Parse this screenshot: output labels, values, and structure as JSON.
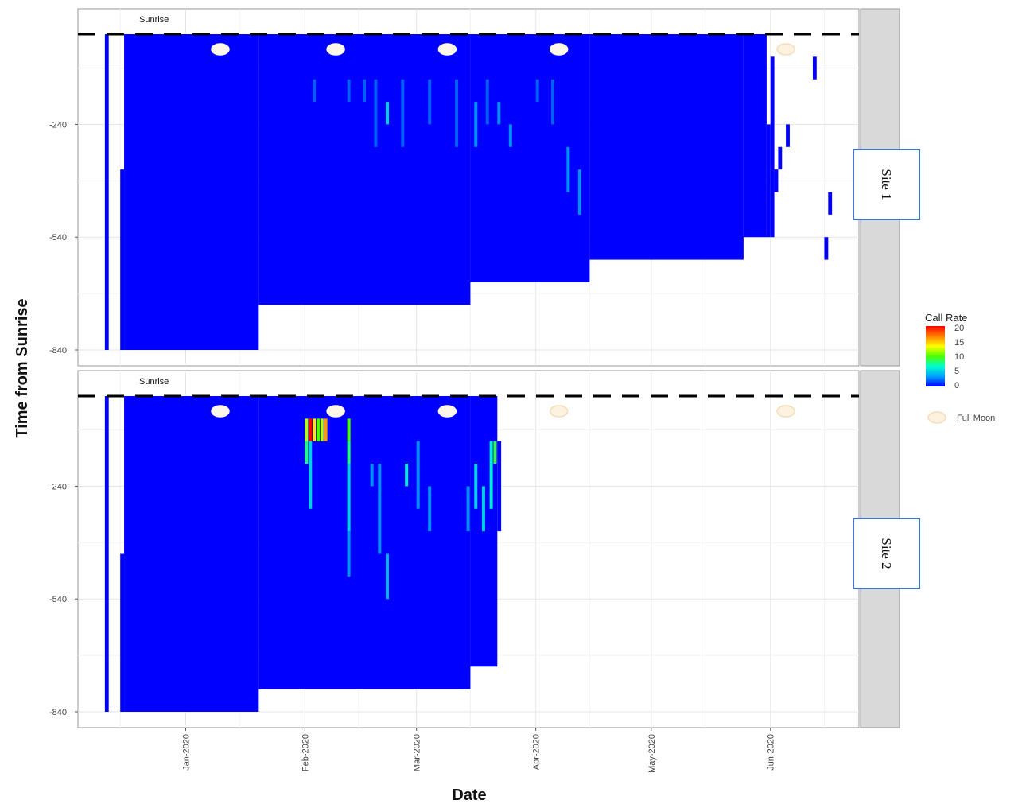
{
  "chart_data": {
    "type": "heatmap",
    "ylabel": "Time from Sunrise",
    "xlabel": "Date",
    "x_ticks": [
      "Jan-2020",
      "Feb-2020",
      "Mar-2020",
      "Apr-2020",
      "May-2020",
      "Jun-2020"
    ],
    "y_ticks": [
      -240,
      -540,
      -840
    ],
    "y_range": [
      -840,
      0
    ],
    "x_range": [
      "2019-12-04",
      "2020-06-24"
    ],
    "grid": true,
    "reference_line": {
      "label": "Sunrise",
      "y": 0,
      "style": "dashed"
    },
    "colorbar": {
      "title": "Call Rate",
      "ticks": [
        20,
        15,
        10,
        5,
        0
      ],
      "range": [
        0,
        20
      ],
      "colors": [
        "#0000ff",
        "#00a0ff",
        "#00ffcc",
        "#4cff00",
        "#ffff00",
        "#ff8000",
        "#ff0000"
      ]
    },
    "moon_legend": "Full Moon",
    "panels": [
      {
        "strip_label": "Site 1",
        "full_moons": [
          {
            "date": "2020-01-10",
            "recorded": true
          },
          {
            "date": "2020-02-09",
            "recorded": true
          },
          {
            "date": "2020-03-09",
            "recorded": true
          },
          {
            "date": "2020-04-07",
            "recorded": true
          },
          {
            "date": "2020-06-05",
            "recorded": false
          }
        ],
        "coverage": [
          {
            "start": "2019-12-11",
            "end": "2019-12-12",
            "from": -840,
            "to": 0
          },
          {
            "start": "2019-12-15",
            "end": "2019-12-16",
            "from": -840,
            "to": -360
          },
          {
            "start": "2019-12-16",
            "end": "2020-01-20",
            "from": -840,
            "to": 0
          },
          {
            "start": "2020-01-20",
            "end": "2020-03-15",
            "from": -720,
            "to": 0
          },
          {
            "start": "2020-03-15",
            "end": "2020-04-15",
            "from": -660,
            "to": 0
          },
          {
            "start": "2020-04-15",
            "end": "2020-05-25",
            "from": -600,
            "to": 0
          },
          {
            "start": "2020-05-25",
            "end": "2020-05-31",
            "from": -540,
            "to": 0
          },
          {
            "start": "2020-05-31",
            "end": "2020-06-01",
            "from": -540,
            "to": -240
          },
          {
            "start": "2020-06-01",
            "end": "2020-06-02",
            "from": -540,
            "to": -60
          },
          {
            "start": "2020-06-02",
            "end": "2020-06-03",
            "from": -420,
            "to": -360
          },
          {
            "start": "2020-06-03",
            "end": "2020-06-04",
            "from": -360,
            "to": -300
          },
          {
            "start": "2020-06-05",
            "end": "2020-06-06",
            "from": -300,
            "to": -240
          },
          {
            "start": "2020-06-12",
            "end": "2020-06-13",
            "from": -120,
            "to": -60
          },
          {
            "start": "2020-06-15",
            "end": "2020-06-16",
            "from": -600,
            "to": -540
          },
          {
            "start": "2020-06-16",
            "end": "2020-06-17",
            "from": -480,
            "to": -420
          }
        ],
        "calls": [
          {
            "date": "2020-02-03",
            "from": -180,
            "to": -120,
            "rate": 2
          },
          {
            "date": "2020-02-12",
            "from": -180,
            "to": -120,
            "rate": 2
          },
          {
            "date": "2020-02-16",
            "from": -180,
            "to": -120,
            "rate": 2
          },
          {
            "date": "2020-02-19",
            "from": -300,
            "to": -120,
            "rate": 2
          },
          {
            "date": "2020-02-22",
            "from": -240,
            "to": -180,
            "rate": 5
          },
          {
            "date": "2020-02-26",
            "from": -300,
            "to": -120,
            "rate": 2
          },
          {
            "date": "2020-03-04",
            "from": -240,
            "to": -120,
            "rate": 2
          },
          {
            "date": "2020-03-11",
            "from": -300,
            "to": -120,
            "rate": 2
          },
          {
            "date": "2020-03-16",
            "from": -300,
            "to": -180,
            "rate": 3
          },
          {
            "date": "2020-03-19",
            "from": -240,
            "to": -120,
            "rate": 2
          },
          {
            "date": "2020-03-22",
            "from": -240,
            "to": -180,
            "rate": 3
          },
          {
            "date": "2020-03-25",
            "from": -300,
            "to": -240,
            "rate": 3
          },
          {
            "date": "2020-04-01",
            "from": -180,
            "to": -120,
            "rate": 2
          },
          {
            "date": "2020-04-05",
            "from": -240,
            "to": -120,
            "rate": 2
          },
          {
            "date": "2020-04-09",
            "from": -420,
            "to": -300,
            "rate": 3
          },
          {
            "date": "2020-04-12",
            "from": -480,
            "to": -360,
            "rate": 3
          }
        ]
      },
      {
        "strip_label": "Site 2",
        "full_moons": [
          {
            "date": "2020-01-10",
            "recorded": true
          },
          {
            "date": "2020-02-09",
            "recorded": true
          },
          {
            "date": "2020-03-09",
            "recorded": true
          },
          {
            "date": "2020-04-07",
            "recorded": false
          },
          {
            "date": "2020-06-05",
            "recorded": false
          }
        ],
        "coverage": [
          {
            "start": "2019-12-11",
            "end": "2019-12-12",
            "from": -840,
            "to": 0
          },
          {
            "start": "2019-12-15",
            "end": "2019-12-16",
            "from": -840,
            "to": -420
          },
          {
            "start": "2019-12-16",
            "end": "2020-01-20",
            "from": -840,
            "to": 0
          },
          {
            "start": "2020-01-20",
            "end": "2020-03-15",
            "from": -780,
            "to": 0
          },
          {
            "start": "2020-03-15",
            "end": "2020-03-22",
            "from": -720,
            "to": 0
          },
          {
            "start": "2020-03-22",
            "end": "2020-03-23",
            "from": -360,
            "to": -120
          }
        ],
        "calls": [
          {
            "date": "2020-02-01",
            "from": -120,
            "to": -60,
            "rate": 12
          },
          {
            "date": "2020-02-01",
            "from": -180,
            "to": -120,
            "rate": 8
          },
          {
            "date": "2020-02-02",
            "from": -120,
            "to": -60,
            "rate": 20
          },
          {
            "date": "2020-02-02",
            "from": -300,
            "to": -120,
            "rate": 5
          },
          {
            "date": "2020-02-03",
            "from": -120,
            "to": -60,
            "rate": 14
          },
          {
            "date": "2020-02-04",
            "from": -120,
            "to": -60,
            "rate": 10
          },
          {
            "date": "2020-02-05",
            "from": -120,
            "to": -60,
            "rate": 12
          },
          {
            "date": "2020-02-06",
            "from": -120,
            "to": -60,
            "rate": 16
          },
          {
            "date": "2020-02-12",
            "from": -120,
            "to": -60,
            "rate": 10
          },
          {
            "date": "2020-02-12",
            "from": -180,
            "to": -120,
            "rate": 8
          },
          {
            "date": "2020-02-12",
            "from": -360,
            "to": -180,
            "rate": 5
          },
          {
            "date": "2020-02-12",
            "from": -480,
            "to": -360,
            "rate": 3
          },
          {
            "date": "2020-02-18",
            "from": -240,
            "to": -180,
            "rate": 3
          },
          {
            "date": "2020-02-20",
            "from": -420,
            "to": -180,
            "rate": 3
          },
          {
            "date": "2020-02-22",
            "from": -540,
            "to": -420,
            "rate": 4
          },
          {
            "date": "2020-02-27",
            "from": -240,
            "to": -180,
            "rate": 6
          },
          {
            "date": "2020-03-01",
            "from": -300,
            "to": -120,
            "rate": 3
          },
          {
            "date": "2020-03-04",
            "from": -360,
            "to": -240,
            "rate": 3
          },
          {
            "date": "2020-03-14",
            "from": -360,
            "to": -240,
            "rate": 3
          },
          {
            "date": "2020-03-16",
            "from": -300,
            "to": -180,
            "rate": 5
          },
          {
            "date": "2020-03-18",
            "from": -360,
            "to": -240,
            "rate": 5
          },
          {
            "date": "2020-03-20",
            "from": -300,
            "to": -120,
            "rate": 6
          },
          {
            "date": "2020-03-21",
            "from": -180,
            "to": -120,
            "rate": 9
          }
        ]
      }
    ]
  }
}
